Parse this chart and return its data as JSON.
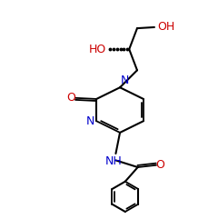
{
  "background": "#ffffff",
  "bond_color": "#000000",
  "N_color": "#0000cc",
  "O_color": "#cc0000",
  "font_size": 9
}
